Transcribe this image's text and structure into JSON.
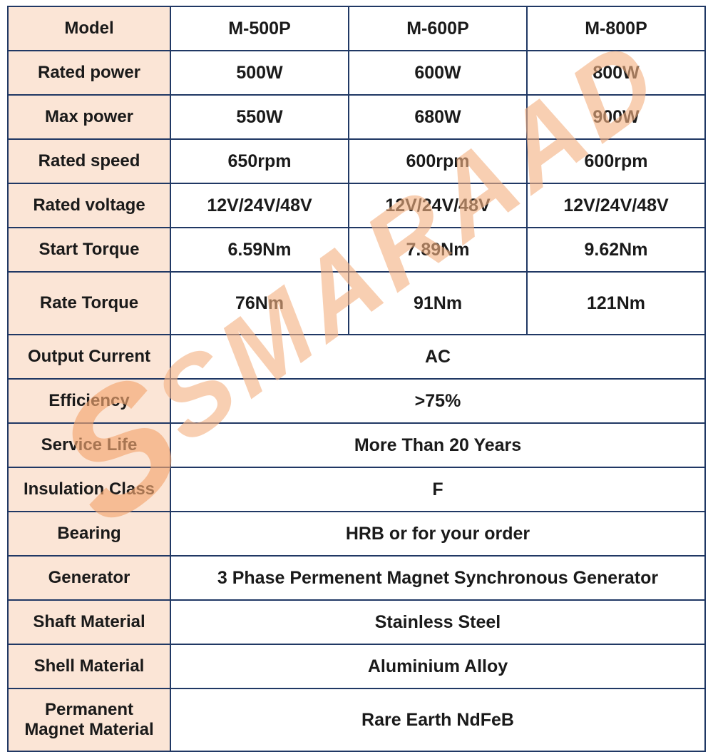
{
  "colors": {
    "border": "#203864",
    "label_bg": "#fbe5d6",
    "text": "#1a1a1a",
    "watermark": "#f4b183"
  },
  "watermark": {
    "logo": "S",
    "text": "SMARAAD"
  },
  "chart_data": {
    "type": "table",
    "title": "Generator specification table",
    "columns": [
      "Model",
      "M-500P",
      "M-600P",
      "M-800P"
    ]
  },
  "table": {
    "rows": [
      {
        "label": "Model",
        "values": [
          "M-500P",
          "M-600P",
          "M-800P"
        ]
      },
      {
        "label": "Rated power",
        "values": [
          "500W",
          "600W",
          "800W"
        ]
      },
      {
        "label": "Max power",
        "values": [
          "550W",
          "680W",
          "900W"
        ]
      },
      {
        "label": "Rated speed",
        "values": [
          "650rpm",
          "600rpm",
          "600rpm"
        ]
      },
      {
        "label": "Rated voltage",
        "values": [
          "12V/24V/48V",
          "12V/24V/48V",
          "12V/24V/48V"
        ]
      },
      {
        "label": "Start Torque",
        "values": [
          "6.59Nm",
          "7.89Nm",
          "9.62Nm"
        ]
      },
      {
        "label": "Rate Torque",
        "values": [
          "76Nm",
          "91Nm",
          "121Nm"
        ]
      },
      {
        "label": "Output Current",
        "value": "AC"
      },
      {
        "label": "Efficiency",
        "value": ">75%"
      },
      {
        "label": "Service Life",
        "value": "More Than 20 Years"
      },
      {
        "label": "Insulation Class",
        "value": "F"
      },
      {
        "label": "Bearing",
        "value": "HRB or for your order"
      },
      {
        "label": "Generator",
        "value": "3 Phase Permenent Magnet Synchronous  Generator"
      },
      {
        "label": "Shaft Material",
        "value": "Stainless Steel"
      },
      {
        "label": "Shell Material",
        "value": "Aluminium Alloy"
      },
      {
        "label": "Permanent Magnet Material",
        "value": "Rare Earth NdFeB"
      }
    ]
  }
}
